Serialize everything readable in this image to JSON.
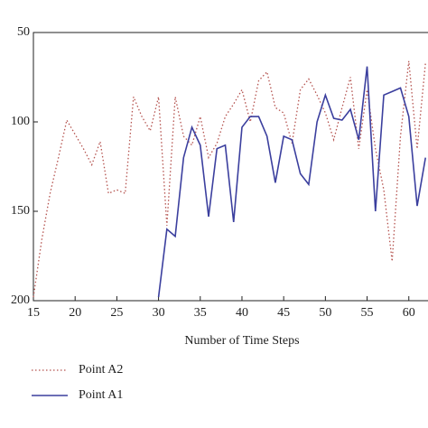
{
  "chart_data": {
    "type": "line",
    "xlabel": "Number of Time Steps",
    "xlim": [
      15,
      62.3
    ],
    "xticks": [
      15,
      20,
      25,
      30,
      35,
      40,
      45,
      50,
      55,
      60
    ],
    "ylim": [
      50,
      200
    ],
    "y_inverted": true,
    "yticks": [
      50,
      100,
      150,
      200
    ],
    "legend": "bottom-left",
    "series": [
      {
        "name": "Point A2",
        "color": "#b5534f",
        "dash": "dotted",
        "x": [
          15,
          16,
          17,
          18,
          19,
          20,
          21,
          22,
          23,
          24,
          25,
          26,
          27,
          28,
          29,
          30,
          31,
          32,
          33,
          34,
          35,
          36,
          37,
          38,
          39,
          40,
          41,
          42,
          43,
          44,
          45,
          46,
          47,
          48,
          49,
          50,
          51,
          52,
          53,
          54,
          55,
          56,
          57,
          58,
          59,
          60,
          61,
          62
        ],
        "values": [
          198,
          166,
          140,
          120,
          99,
          107,
          115,
          124,
          111,
          140,
          138,
          140,
          86,
          97,
          105,
          86,
          158,
          86,
          108,
          113,
          97,
          120,
          112,
          97,
          90,
          82,
          100,
          77,
          72,
          92,
          95,
          112,
          82,
          76,
          85,
          95,
          110,
          92,
          75,
          115,
          82,
          115,
          138,
          178,
          108,
          66,
          115,
          67
        ]
      },
      {
        "name": "Point A1",
        "color": "#3b3f9e",
        "dash": "solid",
        "x": [
          30,
          31,
          32,
          33,
          34,
          35,
          36,
          37,
          38,
          39,
          40,
          41,
          42,
          43,
          44,
          45,
          46,
          47,
          48,
          49,
          50,
          51,
          52,
          53,
          54,
          55,
          56,
          57,
          58,
          59,
          60,
          61,
          62
        ],
        "values": [
          198,
          160,
          164,
          120,
          103,
          113,
          153,
          115,
          113,
          156,
          103,
          97,
          97,
          108,
          134,
          108,
          110,
          129,
          135,
          100,
          85,
          98,
          99,
          93,
          110,
          69,
          150,
          85,
          83,
          81,
          97,
          147,
          120
        ]
      }
    ]
  }
}
